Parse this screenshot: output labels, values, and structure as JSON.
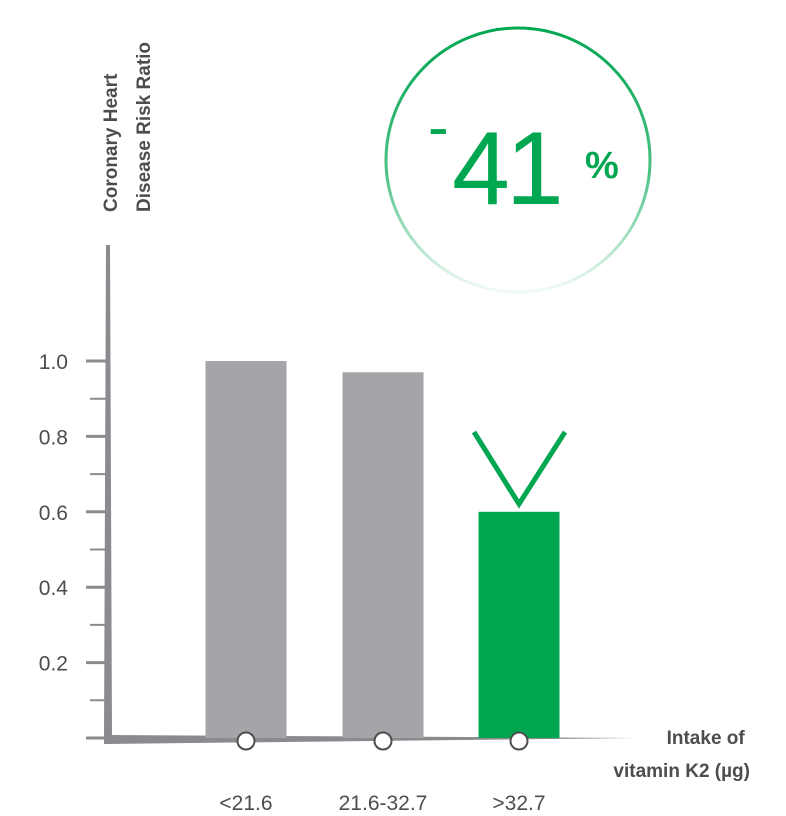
{
  "chart_data": {
    "type": "bar",
    "ylabel": [
      "Coronary Heart",
      "Disease Risk Ratio"
    ],
    "xlabel": [
      "Intake of",
      "vitamin K2 (µg)"
    ],
    "categories": [
      "<21.6",
      "21.6-32.7",
      ">32.7"
    ],
    "values": [
      1.0,
      0.97,
      0.6
    ],
    "ylim": [
      0,
      1.3
    ],
    "yticks": [
      "1.0",
      "0.8",
      "0.6",
      "0.4",
      "0.2"
    ],
    "ytick_values": [
      1.0,
      0.8,
      0.6,
      0.4,
      0.2
    ],
    "grid": false,
    "bar_colors": [
      "#a4a5a8",
      "#a4a5a8",
      "#00a650"
    ],
    "axis_color": "#8b8b8f",
    "annotation": {
      "sign": "-",
      "number": "41",
      "unit": "%",
      "color": "#00a650",
      "target_category": ">32.7"
    }
  }
}
